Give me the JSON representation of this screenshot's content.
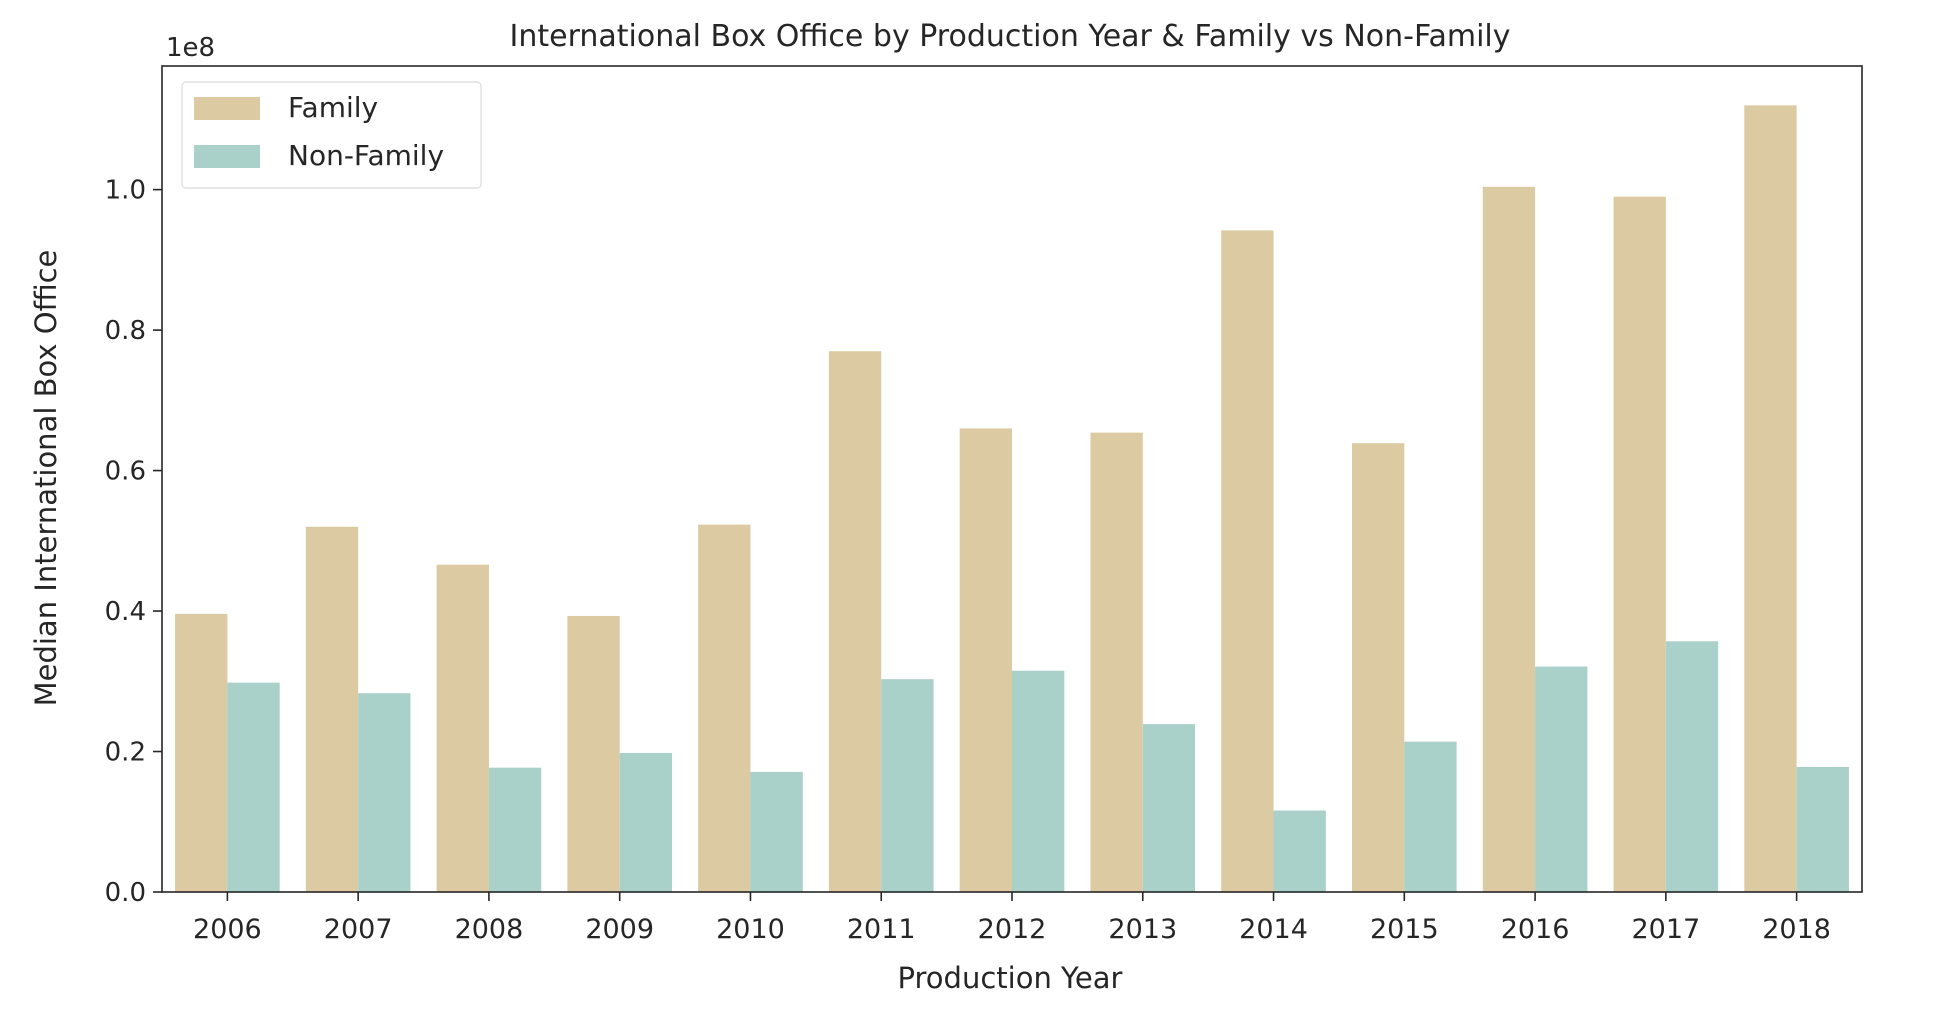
{
  "chart_data": {
    "type": "bar",
    "title": "International Box Office by Production Year & Family vs Non-Family",
    "xlabel": "Production Year",
    "ylabel": "Median International Box Office",
    "y_offset_label": "1e8",
    "y_scale": 100000000,
    "ylim": [
      0,
      117600000
    ],
    "y_ticks": [
      0,
      20000000,
      40000000,
      60000000,
      80000000,
      100000000
    ],
    "y_tick_labels": [
      "0.0",
      "0.2",
      "0.4",
      "0.6",
      "0.8",
      "1.0"
    ],
    "categories": [
      "2006",
      "2007",
      "2008",
      "2009",
      "2010",
      "2011",
      "2012",
      "2013",
      "2014",
      "2015",
      "2016",
      "2017",
      "2018"
    ],
    "series": [
      {
        "name": "Family",
        "color": "#dccba2",
        "values": [
          39600000,
          52000000,
          46600000,
          39300000,
          52300000,
          77000000,
          66000000,
          65400000,
          94200000,
          63900000,
          100400000,
          99000000,
          112000000
        ]
      },
      {
        "name": "Non-Family",
        "color": "#aad0ca",
        "values": [
          29800000,
          28300000,
          17700000,
          19800000,
          17100000,
          30300000,
          31500000,
          23900000,
          11600000,
          21400000,
          32100000,
          35700000,
          17800000
        ]
      }
    ],
    "legend_position": "upper-left",
    "grid": false
  }
}
